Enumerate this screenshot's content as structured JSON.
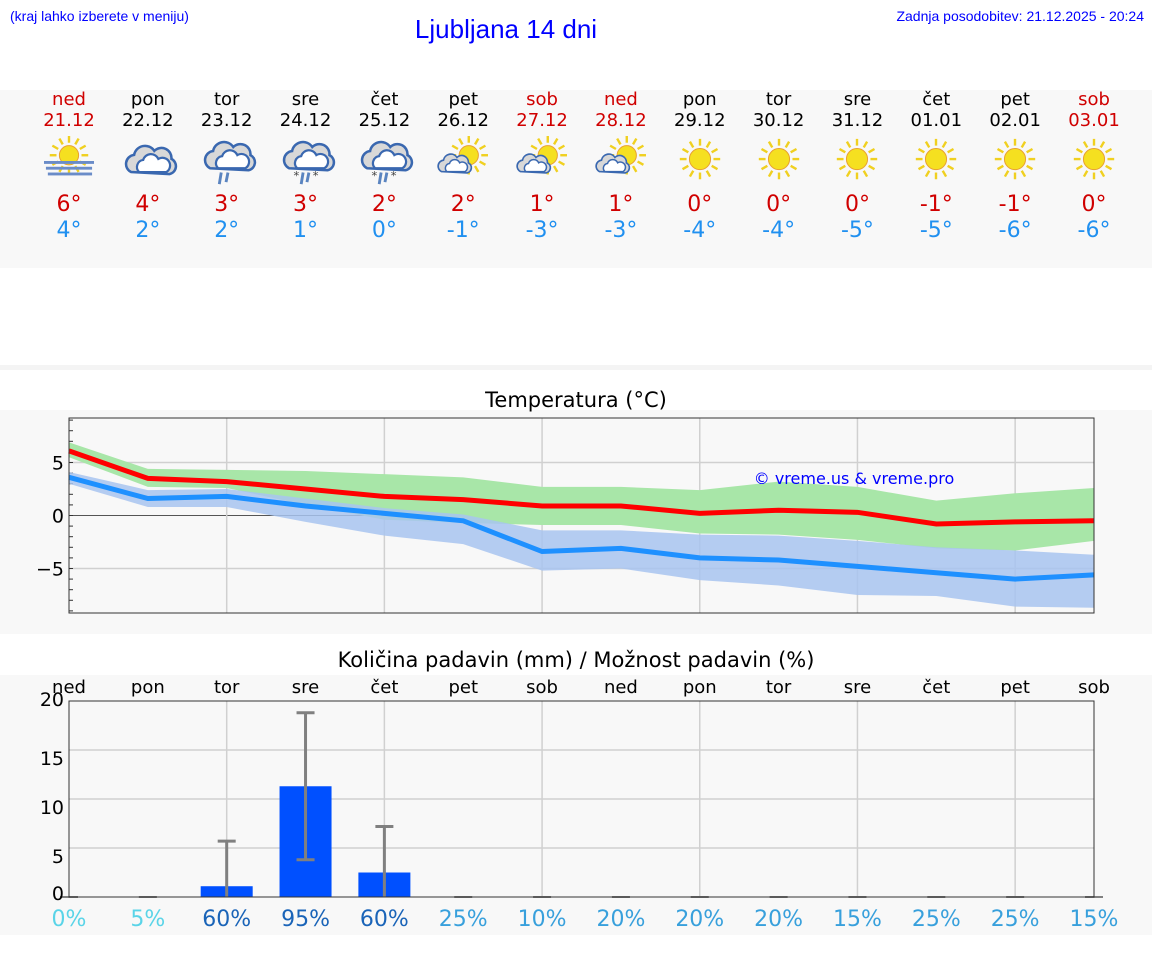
{
  "header": {
    "hint": "(kraj lahko izberete v meniju)",
    "title": "Ljubljana 14 dni",
    "updated": "Zadnja posodobitev: 21.12.2025 - 20:24"
  },
  "colors": {
    "weekend": "#d00000",
    "weekday": "#000000",
    "tmax": "#d00000",
    "tmin": "#2090f0",
    "max_line": "#ff0000",
    "min_line": "#1e90ff",
    "max_band": "#a8e6a8",
    "min_band": "#a8c4f0",
    "bar": "#0050ff",
    "errorbar": "#808080"
  },
  "days": [
    {
      "name": "ned",
      "date": "21.12",
      "weekend": true,
      "icon": "sun-fog",
      "tmax": "6°",
      "tmin": "4°"
    },
    {
      "name": "pon",
      "date": "22.12",
      "weekend": false,
      "icon": "cloudy",
      "tmax": "4°",
      "tmin": "2°"
    },
    {
      "name": "tor",
      "date": "23.12",
      "weekend": false,
      "icon": "cloud-rain",
      "tmax": "3°",
      "tmin": "2°"
    },
    {
      "name": "sre",
      "date": "24.12",
      "weekend": false,
      "icon": "cloud-sleet",
      "tmax": "3°",
      "tmin": "1°"
    },
    {
      "name": "čet",
      "date": "25.12",
      "weekend": false,
      "icon": "cloud-sleet",
      "tmax": "2°",
      "tmin": "0°"
    },
    {
      "name": "pet",
      "date": "26.12",
      "weekend": false,
      "icon": "sun-cloud",
      "tmax": "2°",
      "tmin": "-1°"
    },
    {
      "name": "sob",
      "date": "27.12",
      "weekend": true,
      "icon": "sun-cloud",
      "tmax": "1°",
      "tmin": "-3°"
    },
    {
      "name": "ned",
      "date": "28.12",
      "weekend": true,
      "icon": "sun-cloud",
      "tmax": "1°",
      "tmin": "-3°"
    },
    {
      "name": "pon",
      "date": "29.12",
      "weekend": false,
      "icon": "sun",
      "tmax": "0°",
      "tmin": "-4°"
    },
    {
      "name": "tor",
      "date": "30.12",
      "weekend": false,
      "icon": "sun",
      "tmax": "0°",
      "tmin": "-4°"
    },
    {
      "name": "sre",
      "date": "31.12",
      "weekend": false,
      "icon": "sun",
      "tmax": "0°",
      "tmin": "-5°"
    },
    {
      "name": "čet",
      "date": "01.01",
      "weekend": false,
      "icon": "sun",
      "tmax": "-1°",
      "tmin": "-5°"
    },
    {
      "name": "pet",
      "date": "02.01",
      "weekend": false,
      "icon": "sun",
      "tmax": "-1°",
      "tmin": "-6°"
    },
    {
      "name": "sob",
      "date": "03.01",
      "weekend": true,
      "icon": "sun",
      "tmax": "0°",
      "tmin": "-6°"
    }
  ],
  "chart_data": [
    {
      "type": "line",
      "title": "Temperatura (°C)",
      "watermark": "© vreme.us & vreme.pro",
      "ylim": [
        -9.2,
        9.2
      ],
      "yticks": [
        5,
        0,
        -5
      ],
      "ytick_labels": [
        "5",
        "0",
        "−5"
      ],
      "grid": true,
      "series": [
        {
          "values": [
            6.1,
            3.5,
            3.2,
            2.5,
            1.8,
            1.5,
            0.9,
            0.9,
            0.2,
            0.5,
            0.3,
            -0.8,
            -0.6,
            -0.5
          ]
        },
        {
          "values": [
            3.6,
            1.6,
            1.8,
            0.9,
            0.2,
            -0.5,
            -3.4,
            -3.1,
            -4.0,
            -4.2,
            -4.8,
            -5.4,
            -6.0,
            -5.6
          ]
        }
      ],
      "bands": [
        {
          "upper": [
            6.9,
            4.4,
            4.3,
            4.2,
            3.9,
            3.6,
            2.7,
            2.7,
            2.4,
            3.2,
            2.7,
            1.4,
            2.1,
            2.6
          ],
          "lower": [
            5.5,
            2.7,
            2.6,
            1.0,
            -0.4,
            -0.7,
            -0.9,
            -0.9,
            -1.7,
            -1.8,
            -2.3,
            -3.1,
            -3.3,
            -2.4
          ]
        },
        {
          "upper": [
            4.1,
            2.4,
            2.5,
            1.6,
            0.7,
            0.1,
            -1.4,
            -1.4,
            -1.8,
            -1.9,
            -2.4,
            -3.0,
            -3.3,
            -3.7
          ],
          "lower": [
            3.0,
            0.8,
            0.8,
            -0.6,
            -1.9,
            -2.7,
            -5.2,
            -5.0,
            -6.1,
            -6.6,
            -7.5,
            -7.6,
            -8.6,
            -8.7
          ]
        }
      ]
    },
    {
      "type": "bar",
      "title": "Količina padavin (mm) / Možnost padavin (%)",
      "categories": [
        "ned",
        "pon",
        "tor",
        "sre",
        "čet",
        "pet",
        "sob",
        "ned",
        "pon",
        "tor",
        "sre",
        "čet",
        "pet",
        "sob"
      ],
      "values": [
        0,
        0,
        1.1,
        11.3,
        2.5,
        0,
        0,
        0,
        0,
        0,
        0,
        0,
        0,
        0
      ],
      "error_low": [
        0,
        0,
        0,
        3.8,
        0,
        0,
        0,
        0,
        0,
        0,
        0,
        0,
        0,
        0
      ],
      "error_high": [
        0,
        0,
        5.7,
        18.8,
        7.2,
        0,
        0,
        0,
        0,
        0,
        0,
        0,
        0,
        0
      ],
      "ylim": [
        0,
        20
      ],
      "yticks": [
        0,
        5,
        10,
        15,
        20
      ],
      "ytick_labels": [
        "0",
        "5",
        "10",
        "15",
        "20"
      ],
      "grid": true,
      "probability": [
        "0%",
        "5%",
        "60%",
        "95%",
        "60%",
        "25%",
        "10%",
        "20%",
        "20%",
        "20%",
        "15%",
        "25%",
        "25%",
        "15%"
      ],
      "probability_colors": [
        "#5ad4e8",
        "#5ad4e8",
        "#1a64b8",
        "#1a64b8",
        "#1a64b8",
        "#38a0dc",
        "#38a0dc",
        "#38a0dc",
        "#38a0dc",
        "#38a0dc",
        "#38a0dc",
        "#38a0dc",
        "#38a0dc",
        "#38a0dc"
      ]
    }
  ]
}
